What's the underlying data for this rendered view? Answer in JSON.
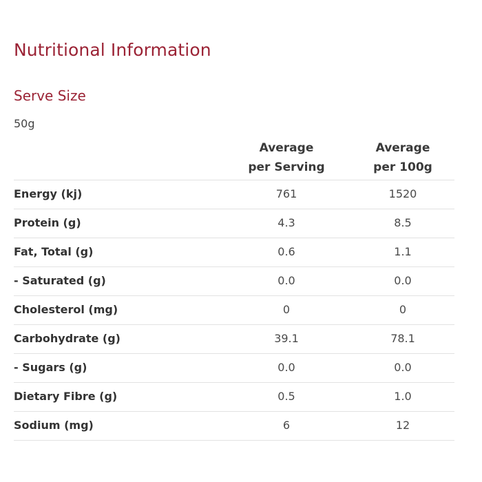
{
  "title": "Nutritional Information",
  "serve_size": {
    "heading": "Serve Size",
    "value": "50g"
  },
  "table": {
    "columns": [
      {
        "line1": "Average",
        "line2": "per Serving"
      },
      {
        "line1": "Average",
        "line2": "per 100g"
      }
    ],
    "rows": [
      {
        "label": "Energy (kj)",
        "per_serving": "761",
        "per_100g": "1520"
      },
      {
        "label": "Protein (g)",
        "per_serving": "4.3",
        "per_100g": "8.5"
      },
      {
        "label": "Fat, Total (g)",
        "per_serving": "0.6",
        "per_100g": "1.1"
      },
      {
        "label": "- Saturated (g)",
        "per_serving": "0.0",
        "per_100g": "0.0"
      },
      {
        "label": "Cholesterol (mg)",
        "per_serving": "0",
        "per_100g": "0"
      },
      {
        "label": "Carbohydrate (g)",
        "per_serving": "39.1",
        "per_100g": "78.1"
      },
      {
        "label": "- Sugars (g)",
        "per_serving": "0.0",
        "per_100g": "0.0"
      },
      {
        "label": "Dietary Fibre (g)",
        "per_serving": "0.5",
        "per_100g": "1.0"
      },
      {
        "label": "Sodium (mg)",
        "per_serving": "6",
        "per_100g": "12"
      }
    ]
  }
}
